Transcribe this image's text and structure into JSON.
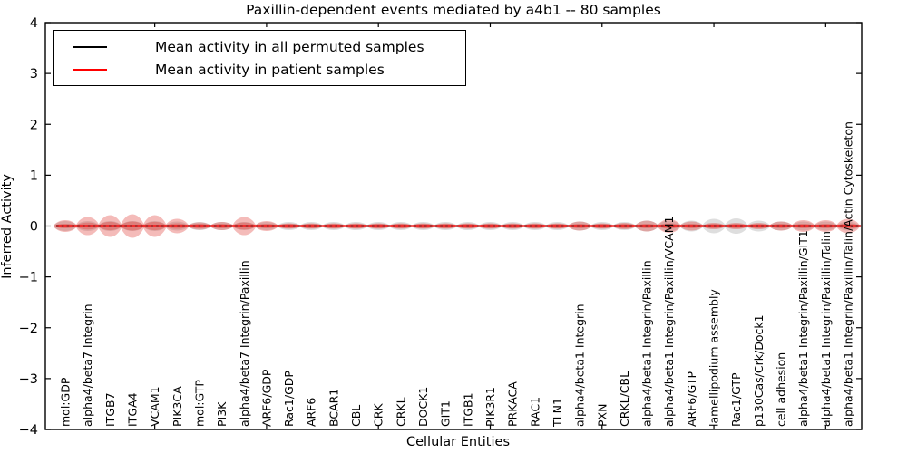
{
  "title": "Paxillin-dependent events mediated by a4b1 -- 80 samples",
  "legend": {
    "items": [
      {
        "label": "Mean activity in all permuted samples",
        "color": "#000000"
      },
      {
        "label": "Mean activity in patient samples",
        "color": "#ff0000"
      }
    ]
  },
  "chart_data": {
    "type": "violin",
    "title": "Paxillin-dependent events mediated by a4b1 -- 80 samples",
    "xlabel": "Cellular Entities",
    "ylabel": "Inferred Activity",
    "ylim": [
      -4,
      4
    ],
    "yticks": [
      4,
      3,
      2,
      1,
      0,
      -1,
      -2,
      -3,
      -4
    ],
    "grid": false,
    "legend_position": "upper left",
    "categories": [
      "mol:GDP",
      "alpha4/beta7 Integrin",
      "ITGB7",
      "ITGA4",
      "VCAM1",
      "PIK3CA",
      "mol:GTP",
      "PI3K",
      "alpha4/beta7 Integrin/Paxillin",
      "ARF6/GDP",
      "Rac1/GDP",
      "ARF6",
      "BCAR1",
      "CBL",
      "CRK",
      "CRKL",
      "DOCK1",
      "GIT1",
      "ITGB1",
      "PIK3R1",
      "PRKACA",
      "RAC1",
      "TLN1",
      "alpha4/beta1 Integrin",
      "PXN",
      "CRKL/CBL",
      "alpha4/beta1 Integrin/Paxillin",
      "alpha4/beta1 Integrin/Paxillin/VCAM1",
      "ARF6/GTP",
      "lamellipodium assembly",
      "Rac1/GTP",
      "p130Cas/Crk/Dock1",
      "cell adhesion",
      "alpha4/beta1 Integrin/Paxillin/GIT1",
      "alpha4/beta1 Integrin/Paxillin/Talin",
      "alpha4/beta1 Integrin/Paxillin/Talin/Actin Cytoskeleton"
    ],
    "series": [
      {
        "name": "Mean activity in all permuted samples",
        "line_color": "#000000",
        "line_style": "dashed",
        "fill_color": "rgba(125,125,125,0.25)",
        "mean": 0,
        "half_widths": [
          0.098,
          0.098,
          0.098,
          0.098,
          0.098,
          0.089,
          0.08,
          0.08,
          0.08,
          0.08,
          0.08,
          0.08,
          0.08,
          0.08,
          0.08,
          0.08,
          0.08,
          0.08,
          0.08,
          0.08,
          0.08,
          0.08,
          0.08,
          0.089,
          0.08,
          0.08,
          0.107,
          0.107,
          0.107,
          0.143,
          0.152,
          0.107,
          0.089,
          0.089,
          0.089,
          0.089
        ]
      },
      {
        "name": "Mean activity in patient samples",
        "line_color": "#ff0000",
        "line_style": "solid",
        "fill_color": "rgba(222,45,38,0.32)",
        "mean": 0,
        "half_widths": [
          0.116,
          0.179,
          0.214,
          0.232,
          0.214,
          0.143,
          0.071,
          0.08,
          0.179,
          0.098,
          0.054,
          0.054,
          0.054,
          0.054,
          0.054,
          0.054,
          0.054,
          0.054,
          0.054,
          0.054,
          0.054,
          0.054,
          0.054,
          0.089,
          0.054,
          0.063,
          0.107,
          0.134,
          0.089,
          0.063,
          0.063,
          0.063,
          0.089,
          0.116,
          0.116,
          0.143
        ]
      }
    ],
    "x_major_tick_positions": [
      5,
      10,
      15,
      20,
      25,
      30,
      35
    ]
  }
}
